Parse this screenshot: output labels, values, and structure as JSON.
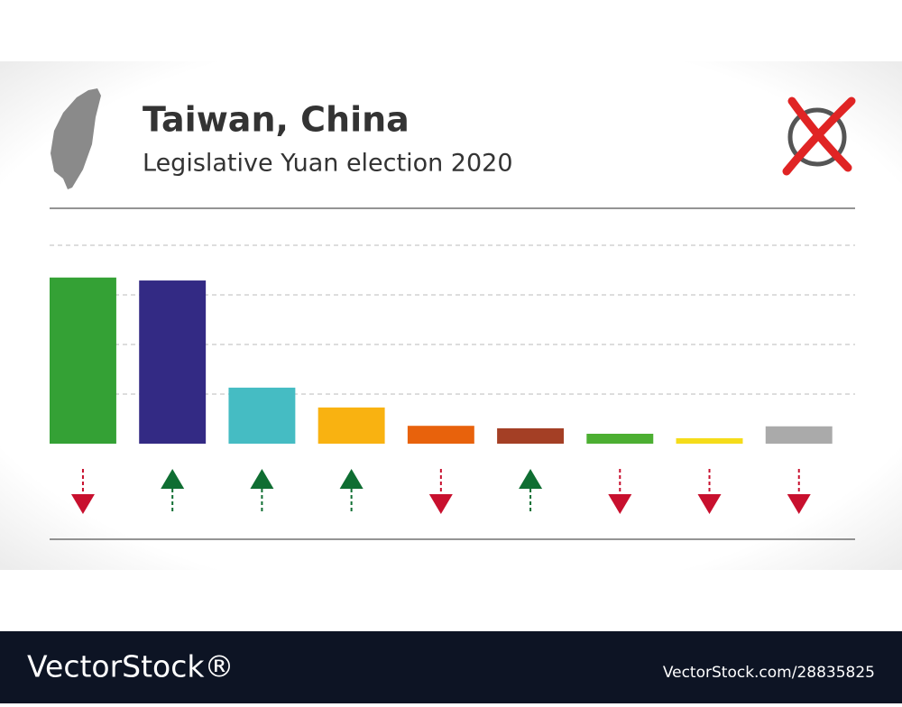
{
  "chart_data": {
    "type": "bar",
    "title": "Taiwan, China",
    "subtitle": "Legislative Yuan election 2020",
    "values": [
      3.35,
      3.29,
      1.13,
      0.73,
      0.36,
      0.31,
      0.2,
      0.11,
      0.35
    ],
    "colors": [
      "#34a135",
      "#332a84",
      "#45bcc3",
      "#f9b211",
      "#e8620c",
      "#a43f25",
      "#4caf32",
      "#f5dc1a",
      "#aaaaaa"
    ],
    "trend": [
      "down",
      "up",
      "up",
      "up",
      "down",
      "up",
      "down",
      "down",
      "down"
    ],
    "ylim": [
      0,
      4
    ],
    "yticks": [
      1,
      2,
      3,
      4
    ],
    "grid": true
  },
  "footer": {
    "brand": "VectorStock®",
    "id": "VectorStock.com/28835825"
  }
}
